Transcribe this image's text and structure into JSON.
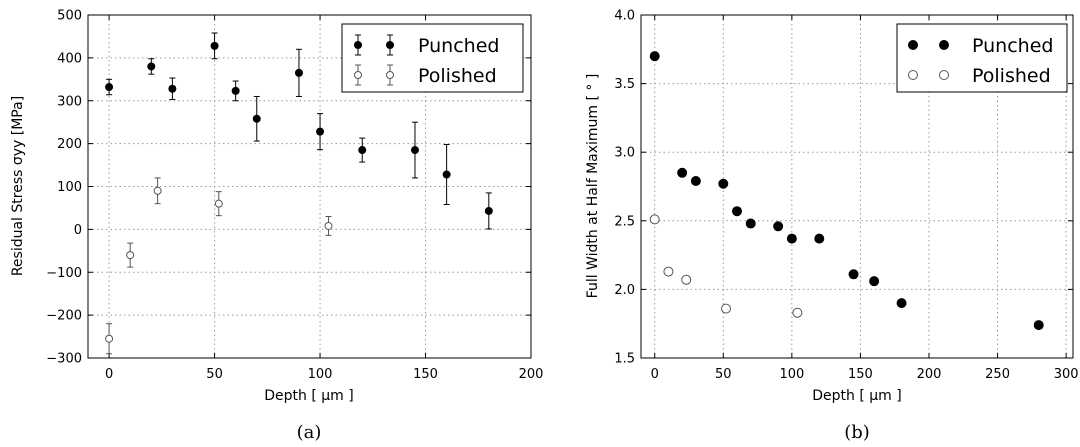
{
  "chart_data": [
    {
      "type": "scatter",
      "caption": "(a)",
      "xlabel": "Depth [ μm ]",
      "ylabel": "Residual Stress σyy [MPa]",
      "xlim": [
        -10,
        200
      ],
      "ylim": [
        -300,
        500
      ],
      "xticks": [
        0,
        50,
        100,
        150,
        200
      ],
      "yticks": [
        -300,
        -200,
        -100,
        0,
        100,
        200,
        300,
        400,
        500
      ],
      "grid": true,
      "legend_position": "top-right",
      "error_bars": true,
      "series": [
        {
          "name": "Punched",
          "marker": "filled-circle",
          "points": [
            {
              "x": 0,
              "y": 332,
              "err": 18
            },
            {
              "x": 20,
              "y": 380,
              "err": 18
            },
            {
              "x": 30,
              "y": 328,
              "err": 25
            },
            {
              "x": 50,
              "y": 428,
              "err": 30
            },
            {
              "x": 60,
              "y": 323,
              "err": 23
            },
            {
              "x": 70,
              "y": 258,
              "err": 52
            },
            {
              "x": 90,
              "y": 365,
              "err": 55
            },
            {
              "x": 100,
              "y": 228,
              "err": 42
            },
            {
              "x": 120,
              "y": 185,
              "err": 28
            },
            {
              "x": 145,
              "y": 185,
              "err": 65
            },
            {
              "x": 160,
              "y": 128,
              "err": 70
            },
            {
              "x": 180,
              "y": 43,
              "err": 42
            }
          ]
        },
        {
          "name": "Polished",
          "marker": "open-circle",
          "points": [
            {
              "x": 0,
              "y": -255,
              "err": 35
            },
            {
              "x": 10,
              "y": -60,
              "err": 28
            },
            {
              "x": 23,
              "y": 90,
              "err": 30
            },
            {
              "x": 52,
              "y": 60,
              "err": 28
            },
            {
              "x": 104,
              "y": 8,
              "err": 22
            }
          ]
        }
      ]
    },
    {
      "type": "scatter",
      "caption": "(b)",
      "xlabel": "Depth [ μm ]",
      "ylabel": "Full Width at Half Maximum [ ° ]",
      "xlim": [
        -10,
        305
      ],
      "ylim": [
        1.5,
        4.0
      ],
      "xticks": [
        0,
        50,
        100,
        150,
        200,
        250,
        300
      ],
      "yticks": [
        "1.5",
        "2.0",
        "2.5",
        "3.0",
        "3.5",
        "4.0"
      ],
      "grid": true,
      "legend_position": "top-right",
      "series": [
        {
          "name": "Punched",
          "marker": "filled-circle",
          "points": [
            {
              "x": 0,
              "y": 3.7
            },
            {
              "x": 20,
              "y": 2.85
            },
            {
              "x": 30,
              "y": 2.79
            },
            {
              "x": 50,
              "y": 2.77
            },
            {
              "x": 60,
              "y": 2.57
            },
            {
              "x": 70,
              "y": 2.48
            },
            {
              "x": 90,
              "y": 2.46
            },
            {
              "x": 100,
              "y": 2.37
            },
            {
              "x": 120,
              "y": 2.37
            },
            {
              "x": 145,
              "y": 2.11
            },
            {
              "x": 160,
              "y": 2.06
            },
            {
              "x": 180,
              "y": 1.9
            },
            {
              "x": 280,
              "y": 1.74
            }
          ]
        },
        {
          "name": "Polished",
          "marker": "open-circle",
          "points": [
            {
              "x": 0,
              "y": 2.51
            },
            {
              "x": 10,
              "y": 2.13
            },
            {
              "x": 23,
              "y": 2.07
            },
            {
              "x": 52,
              "y": 1.86
            },
            {
              "x": 104,
              "y": 1.83
            }
          ]
        }
      ]
    }
  ]
}
